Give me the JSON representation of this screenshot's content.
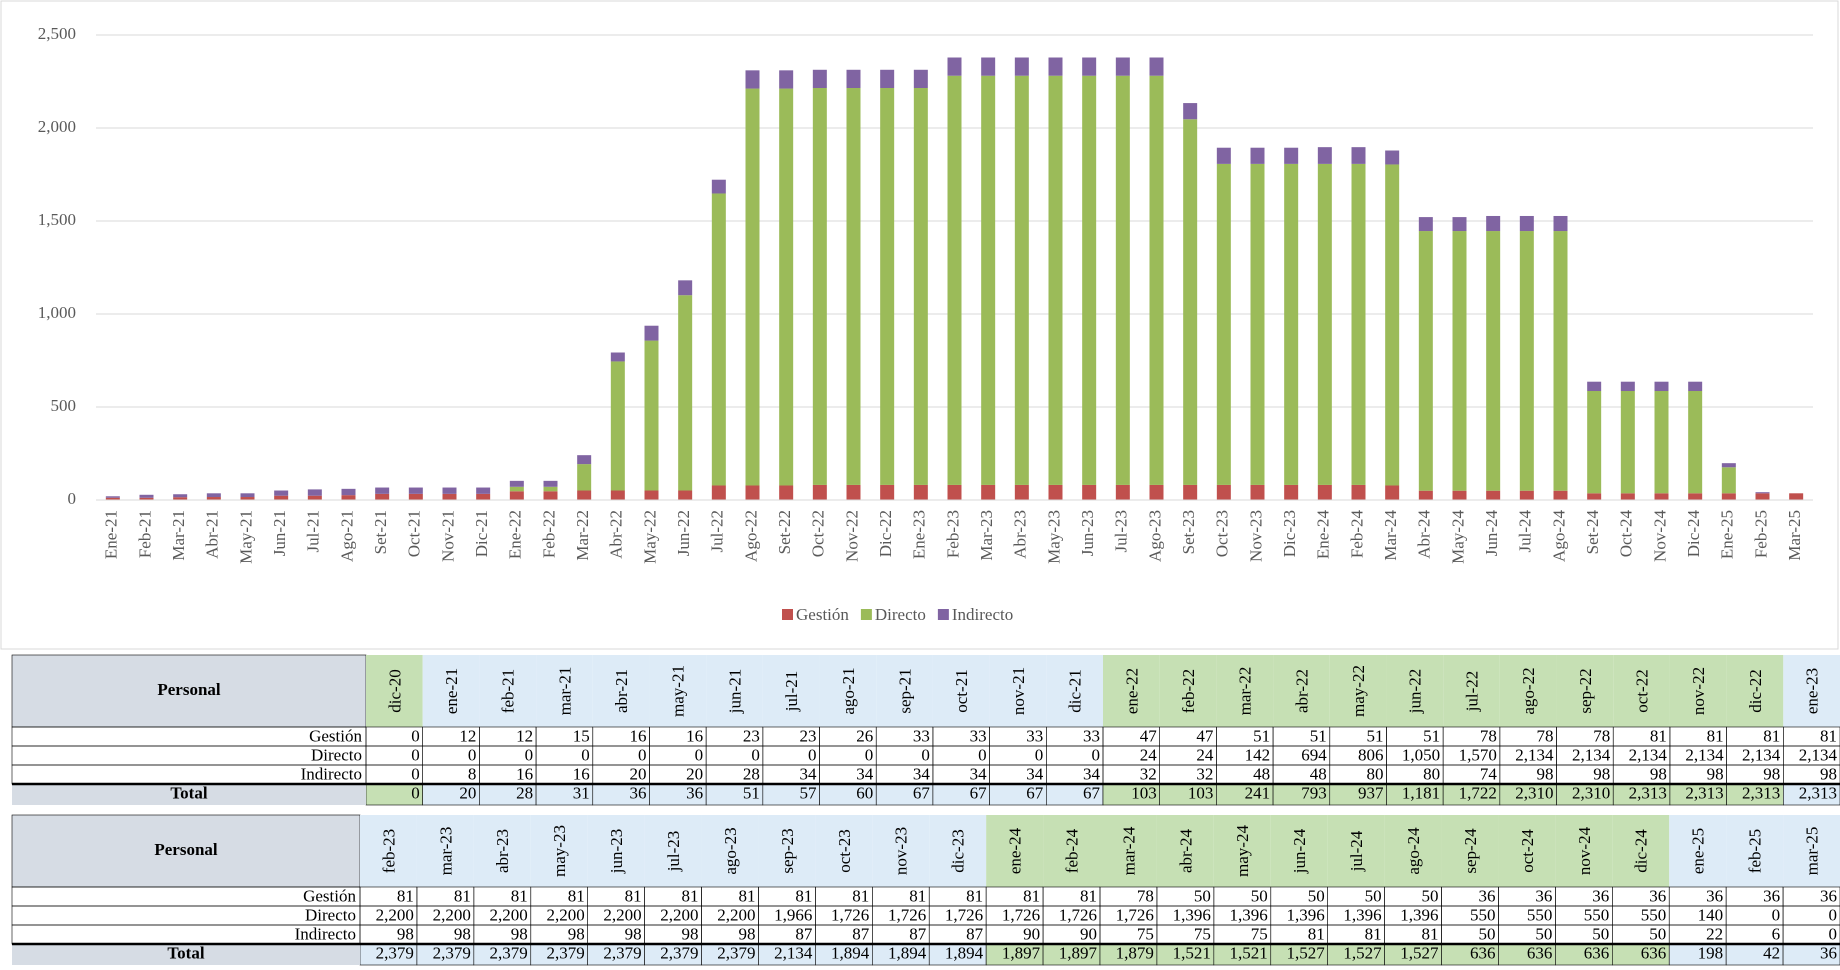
{
  "chart_data": {
    "type": "stacked_bar",
    "categories": [
      "Ene-21",
      "Feb-21",
      "Mar-21",
      "Abr-21",
      "May-21",
      "Jun-21",
      "Jul-21",
      "Ago-21",
      "Set-21",
      "Oct-21",
      "Nov-21",
      "Dic-21",
      "Ene-22",
      "Feb-22",
      "Mar-22",
      "Abr-22",
      "May-22",
      "Jun-22",
      "Jul-22",
      "Ago-22",
      "Set-22",
      "Oct-22",
      "Nov-22",
      "Dic-22",
      "Ene-23",
      "Feb-23",
      "Mar-23",
      "Abr-23",
      "May-23",
      "Jun-23",
      "Jul-23",
      "Ago-23",
      "Set-23",
      "Oct-23",
      "Nov-23",
      "Dic-23",
      "Ene-24",
      "Feb-24",
      "Mar-24",
      "Abr-24",
      "May-24",
      "Jun-24",
      "Jul-24",
      "Ago-24",
      "Set-24",
      "Oct-24",
      "Nov-24",
      "Dic-24",
      "Ene-25",
      "Feb-25",
      "Mar-25"
    ],
    "series": [
      {
        "name": "Gestión",
        "color": "#c0504d",
        "values": [
          12,
          12,
          15,
          16,
          16,
          23,
          23,
          26,
          33,
          33,
          33,
          33,
          47,
          47,
          51,
          51,
          51,
          51,
          78,
          78,
          78,
          81,
          81,
          81,
          81,
          81,
          81,
          81,
          81,
          81,
          81,
          81,
          81,
          81,
          81,
          81,
          81,
          81,
          78,
          50,
          50,
          50,
          50,
          50,
          36,
          36,
          36,
          36,
          36,
          36,
          36
        ]
      },
      {
        "name": "Directo",
        "color": "#9bbb59",
        "values": [
          0,
          0,
          0,
          0,
          0,
          0,
          0,
          0,
          0,
          0,
          0,
          0,
          24,
          24,
          142,
          694,
          806,
          1050,
          1570,
          2134,
          2134,
          2134,
          2134,
          2134,
          2134,
          2200,
          2200,
          2200,
          2200,
          2200,
          2200,
          2200,
          1966,
          1726,
          1726,
          1726,
          1726,
          1726,
          1726,
          1396,
          1396,
          1396,
          1396,
          1396,
          550,
          550,
          550,
          550,
          140,
          0,
          0
        ]
      },
      {
        "name": "Indirecto",
        "color": "#8064a2",
        "values": [
          8,
          16,
          16,
          20,
          20,
          28,
          34,
          34,
          34,
          34,
          34,
          34,
          32,
          32,
          48,
          48,
          80,
          80,
          74,
          98,
          98,
          98,
          98,
          98,
          98,
          98,
          98,
          98,
          98,
          98,
          98,
          98,
          87,
          87,
          87,
          87,
          90,
          90,
          75,
          75,
          75,
          81,
          81,
          81,
          50,
          50,
          50,
          50,
          22,
          6,
          0
        ]
      }
    ],
    "ylim": [
      0,
      2500
    ],
    "yticks": [
      0,
      500,
      {
        "value": 1000,
        "label": "1,000"
      },
      {
        "value": 1500,
        "label": "1,500"
      },
      {
        "value": 2000,
        "label": "2,000"
      },
      {
        "value": 2500,
        "label": "2,500"
      }
    ],
    "grid": true,
    "legend": "bottom"
  },
  "tables": [
    {
      "header": "Personal",
      "columns": [
        "dic-20",
        "ene-21",
        "feb-21",
        "mar-21",
        "abr-21",
        "may-21",
        "jun-21",
        "jul-21",
        "ago-21",
        "sep-21",
        "oct-21",
        "nov-21",
        "dic-21",
        "ene-22",
        "feb-22",
        "mar-22",
        "abr-22",
        "may-22",
        "jun-22",
        "jul-22",
        "ago-22",
        "sep-22",
        "oct-22",
        "nov-22",
        "dic-22",
        "ene-23"
      ],
      "rows": [
        {
          "label": "Gestión",
          "values": [
            "0",
            "12",
            "12",
            "15",
            "16",
            "16",
            "23",
            "23",
            "26",
            "33",
            "33",
            "33",
            "33",
            "47",
            "47",
            "51",
            "51",
            "51",
            "51",
            "78",
            "78",
            "78",
            "81",
            "81",
            "81",
            "81"
          ]
        },
        {
          "label": "Directo",
          "values": [
            "0",
            "0",
            "0",
            "0",
            "0",
            "0",
            "0",
            "0",
            "0",
            "0",
            "0",
            "0",
            "0",
            "24",
            "24",
            "142",
            "694",
            "806",
            "1,050",
            "1,570",
            "2,134",
            "2,134",
            "2,134",
            "2,134",
            "2,134",
            "2,134"
          ]
        },
        {
          "label": "Indirecto",
          "values": [
            "0",
            "8",
            "16",
            "16",
            "20",
            "20",
            "28",
            "34",
            "34",
            "34",
            "34",
            "34",
            "34",
            "32",
            "32",
            "48",
            "48",
            "80",
            "80",
            "74",
            "98",
            "98",
            "98",
            "98",
            "98",
            "98"
          ]
        },
        {
          "label": "Total",
          "values": [
            "0",
            "20",
            "28",
            "31",
            "36",
            "36",
            "51",
            "57",
            "60",
            "67",
            "67",
            "67",
            "67",
            "103",
            "103",
            "241",
            "793",
            "937",
            "1,181",
            "1,722",
            "2,310",
            "2,310",
            "2,313",
            "2,313",
            "2,313",
            "2,313"
          ]
        }
      ]
    },
    {
      "header": "Personal",
      "columns": [
        "feb-23",
        "mar-23",
        "abr-23",
        "may-23",
        "jun-23",
        "jul-23",
        "ago-23",
        "sep-23",
        "oct-23",
        "nov-23",
        "dic-23",
        "ene-24",
        "feb-24",
        "mar-24",
        "abr-24",
        "may-24",
        "jun-24",
        "jul-24",
        "ago-24",
        "sep-24",
        "oct-24",
        "nov-24",
        "dic-24",
        "ene-25",
        "feb-25",
        "mar-25"
      ],
      "rows": [
        {
          "label": "Gestión",
          "values": [
            "81",
            "81",
            "81",
            "81",
            "81",
            "81",
            "81",
            "81",
            "81",
            "81",
            "81",
            "81",
            "81",
            "78",
            "50",
            "50",
            "50",
            "50",
            "50",
            "36",
            "36",
            "36",
            "36",
            "36",
            "36",
            "36"
          ]
        },
        {
          "label": "Directo",
          "values": [
            "2,200",
            "2,200",
            "2,200",
            "2,200",
            "2,200",
            "2,200",
            "2,200",
            "1,966",
            "1,726",
            "1,726",
            "1,726",
            "1,726",
            "1,726",
            "1,726",
            "1,396",
            "1,396",
            "1,396",
            "1,396",
            "1,396",
            "550",
            "550",
            "550",
            "550",
            "140",
            "0",
            "0"
          ]
        },
        {
          "label": "Indirecto",
          "values": [
            "98",
            "98",
            "98",
            "98",
            "98",
            "98",
            "98",
            "87",
            "87",
            "87",
            "87",
            "90",
            "90",
            "75",
            "75",
            "75",
            "81",
            "81",
            "81",
            "50",
            "50",
            "50",
            "50",
            "22",
            "6",
            "0"
          ]
        },
        {
          "label": "Total",
          "values": [
            "2,379",
            "2,379",
            "2,379",
            "2,379",
            "2,379",
            "2,379",
            "2,379",
            "2,134",
            "1,894",
            "1,894",
            "1,894",
            "1,897",
            "1,897",
            "1,879",
            "1,521",
            "1,521",
            "1,527",
            "1,527",
            "1,527",
            "636",
            "636",
            "636",
            "636",
            "198",
            "42",
            "36"
          ]
        }
      ]
    }
  ]
}
